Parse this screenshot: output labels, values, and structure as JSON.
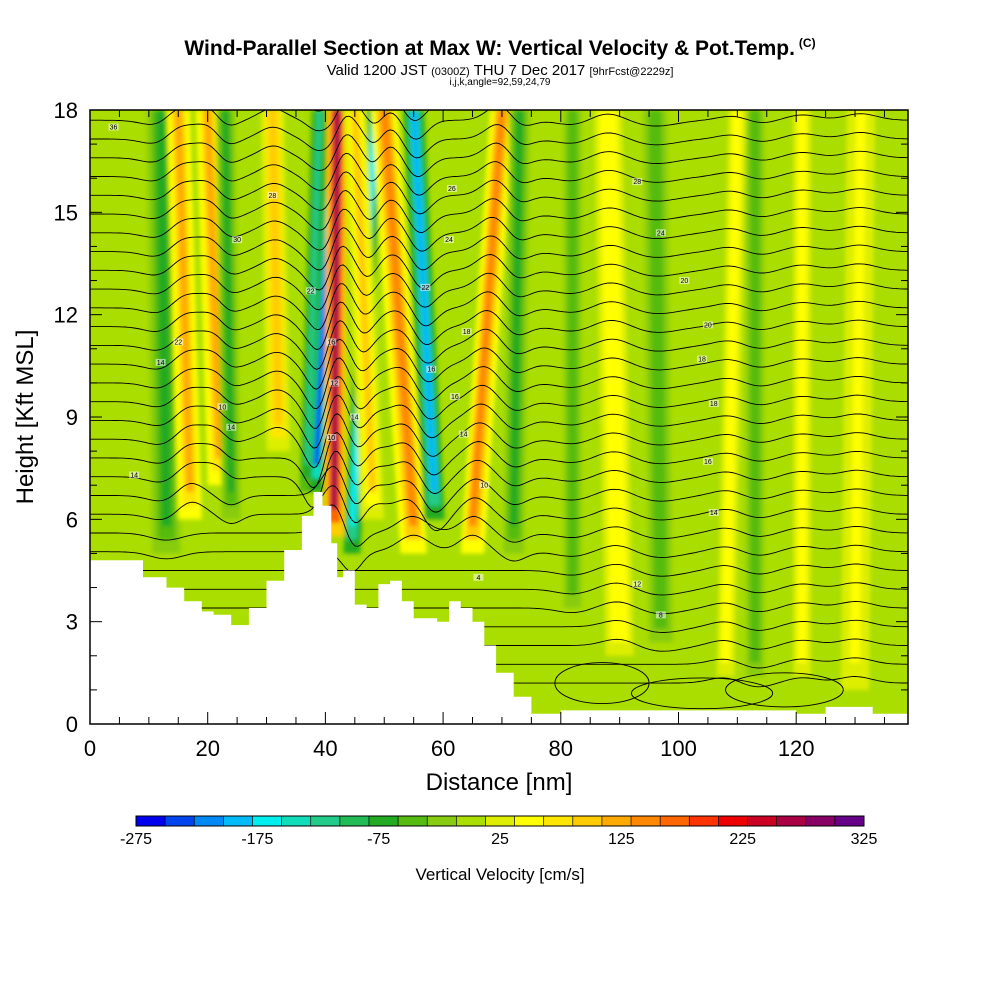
{
  "chart_data": {
    "type": "heatmap",
    "title": "Wind-Parallel Section at Max W: Vertical Velocity & Pot.Temp.",
    "title_mark": "(C)",
    "subtitle_parts": [
      "Valid 1200 JST",
      "(0300Z)",
      "THU 7 Dec 2017",
      "[9hrFcst@2229z]"
    ],
    "subtitle2": "i,j,k,angle=92,59,24,79",
    "xlabel": "Distance [nm]",
    "ylabel": "Height [Kft MSL]",
    "xlim": [
      0,
      139
    ],
    "ylim": [
      0,
      18
    ],
    "xticks": [
      "0",
      "20",
      "40",
      "60",
      "80",
      "100",
      "120"
    ],
    "yticks": [
      "0",
      "3",
      "6",
      "9",
      "12",
      "15",
      "18"
    ],
    "colorbar": {
      "label": "Vertical Velocity [cm/s]",
      "range": [
        -275,
        325
      ],
      "ticks": [
        "-275",
        "-175",
        "-75",
        "25",
        "125",
        "225",
        "325"
      ],
      "colors": [
        "#0000ee",
        "#0044f0",
        "#0088f4",
        "#00bbf8",
        "#00eeee",
        "#11ddbb",
        "#22cc88",
        "#22bb55",
        "#22aa22",
        "#55bb11",
        "#88cc11",
        "#aadd00",
        "#ddee00",
        "#ffff00",
        "#ffe600",
        "#ffcc00",
        "#ffaa00",
        "#ff8800",
        "#ff6600",
        "#ff3300",
        "#ee0000",
        "#cc0022",
        "#aa0044",
        "#880066",
        "#660088"
      ]
    },
    "terrain": [
      [
        0,
        4.8
      ],
      [
        7,
        4.8
      ],
      [
        9,
        4.3
      ],
      [
        13,
        4.0
      ],
      [
        16,
        3.6
      ],
      [
        19,
        3.3
      ],
      [
        21,
        3.2
      ],
      [
        24,
        2.9
      ],
      [
        27,
        3.4
      ],
      [
        30,
        4.2
      ],
      [
        33,
        5.1
      ],
      [
        36,
        6.1
      ],
      [
        38,
        6.8
      ],
      [
        39.5,
        6.4
      ],
      [
        41,
        5.3
      ],
      [
        42,
        4.3
      ],
      [
        43,
        4.5
      ],
      [
        45,
        3.5
      ],
      [
        47,
        3.4
      ],
      [
        49,
        4.1
      ],
      [
        51,
        4.2
      ],
      [
        53,
        3.6
      ],
      [
        55,
        3.1
      ],
      [
        57,
        3.1
      ],
      [
        59,
        3.0
      ],
      [
        61,
        3.6
      ],
      [
        63,
        3.4
      ],
      [
        65,
        3.0
      ],
      [
        67,
        2.3
      ],
      [
        69,
        1.5
      ],
      [
        72,
        0.8
      ],
      [
        75,
        0.3
      ],
      [
        77,
        0.3
      ],
      [
        80,
        0.4
      ],
      [
        85,
        0.4
      ],
      [
        100,
        0.4
      ],
      [
        110,
        0.4
      ],
      [
        120,
        0.3
      ],
      [
        124,
        0.3
      ],
      [
        125,
        0.5
      ],
      [
        131,
        0.5
      ],
      [
        133,
        0.3
      ],
      [
        139,
        0.3
      ]
    ],
    "w_features": [
      {
        "x": 13,
        "x_top": 12,
        "w": 3,
        "base": 5,
        "value": -60
      },
      {
        "x": 17,
        "x_top": 15,
        "w": 2.5,
        "base": 6,
        "value": 120
      },
      {
        "x": 22,
        "x_top": 20,
        "w": 2.5,
        "base": 7,
        "value": 120
      },
      {
        "x": 24,
        "x_top": 23,
        "w": 2,
        "base": 6,
        "value": -80
      },
      {
        "x": 32,
        "x_top": 31,
        "w": 2.5,
        "base": 8,
        "value": 100
      },
      {
        "x": 37,
        "x_top": 39,
        "w": 1.8,
        "base": 6.8,
        "value": -120
      },
      {
        "x": 38.5,
        "x_top": 41.5,
        "w": 1.6,
        "base": 6.8,
        "value": -230
      },
      {
        "x": 41.5,
        "x_top": 42,
        "w": 2.2,
        "base": 5.5,
        "value": 260
      },
      {
        "x": 44.5,
        "x_top": 48.5,
        "w": 1.8,
        "base": 5,
        "value": -170
      },
      {
        "x": 48,
        "x_top": 45,
        "w": 2.5,
        "base": 6,
        "value": 90
      },
      {
        "x": 55,
        "x_top": 50,
        "w": 2.8,
        "base": 5,
        "value": 140
      },
      {
        "x": 58.5,
        "x_top": 55,
        "w": 2.2,
        "base": 6,
        "value": -180
      },
      {
        "x": 65,
        "x_top": 70,
        "w": 2.5,
        "base": 5,
        "value": 140
      },
      {
        "x": 72,
        "x_top": 73,
        "w": 2.2,
        "base": 5,
        "value": -80
      },
      {
        "x": 82,
        "x_top": 82,
        "w": 3,
        "base": 3,
        "value": -40
      },
      {
        "x": 90,
        "x_top": 88,
        "w": 3,
        "base": 2,
        "value": 60
      },
      {
        "x": 97,
        "x_top": 96,
        "w": 4,
        "base": 2,
        "value": -50
      },
      {
        "x": 108,
        "x_top": 110,
        "w": 3,
        "base": 1,
        "value": 50
      },
      {
        "x": 113,
        "x_top": 113,
        "w": 3,
        "base": 1,
        "value": -40
      },
      {
        "x": 121,
        "x_top": 121,
        "w": 3,
        "base": 1,
        "value": 45
      },
      {
        "x": 130,
        "x_top": 131,
        "w": 3,
        "base": 1,
        "value": 55
      }
    ],
    "theta_labels": [
      {
        "x": 4,
        "y": 17.5,
        "text": "36"
      },
      {
        "x": 31,
        "y": 15.5,
        "text": "28"
      },
      {
        "x": 25,
        "y": 14.2,
        "text": "30"
      },
      {
        "x": 15,
        "y": 11.2,
        "text": "22"
      },
      {
        "x": 12,
        "y": 10.6,
        "text": "14"
      },
      {
        "x": 22.5,
        "y": 9.3,
        "text": "10"
      },
      {
        "x": 24,
        "y": 8.7,
        "text": "14"
      },
      {
        "x": 7.5,
        "y": 7.3,
        "text": "14"
      },
      {
        "x": 37.5,
        "y": 12.7,
        "text": "22"
      },
      {
        "x": 41,
        "y": 11.2,
        "text": "16"
      },
      {
        "x": 41.5,
        "y": 10.0,
        "text": "12"
      },
      {
        "x": 45,
        "y": 9.0,
        "text": "14"
      },
      {
        "x": 41,
        "y": 8.4,
        "text": "10"
      },
      {
        "x": 61.5,
        "y": 15.7,
        "text": "26"
      },
      {
        "x": 61,
        "y": 14.2,
        "text": "24"
      },
      {
        "x": 57,
        "y": 12.8,
        "text": "22"
      },
      {
        "x": 64,
        "y": 11.5,
        "text": "18"
      },
      {
        "x": 58,
        "y": 10.4,
        "text": "16"
      },
      {
        "x": 62,
        "y": 9.6,
        "text": "16"
      },
      {
        "x": 63.5,
        "y": 8.5,
        "text": "14"
      },
      {
        "x": 67,
        "y": 7.0,
        "text": "10"
      },
      {
        "x": 66,
        "y": 4.3,
        "text": "4"
      },
      {
        "x": 93,
        "y": 15.9,
        "text": "28"
      },
      {
        "x": 97,
        "y": 14.4,
        "text": "24"
      },
      {
        "x": 101,
        "y": 13.0,
        "text": "20"
      },
      {
        "x": 105,
        "y": 11.7,
        "text": "20"
      },
      {
        "x": 104,
        "y": 10.7,
        "text": "18"
      },
      {
        "x": 106,
        "y": 9.4,
        "text": "18"
      },
      {
        "x": 105,
        "y": 7.7,
        "text": "16"
      },
      {
        "x": 106,
        "y": 6.2,
        "text": "14"
      },
      {
        "x": 93,
        "y": 4.1,
        "text": "12"
      },
      {
        "x": 97,
        "y": 3.2,
        "text": "8"
      }
    ]
  }
}
